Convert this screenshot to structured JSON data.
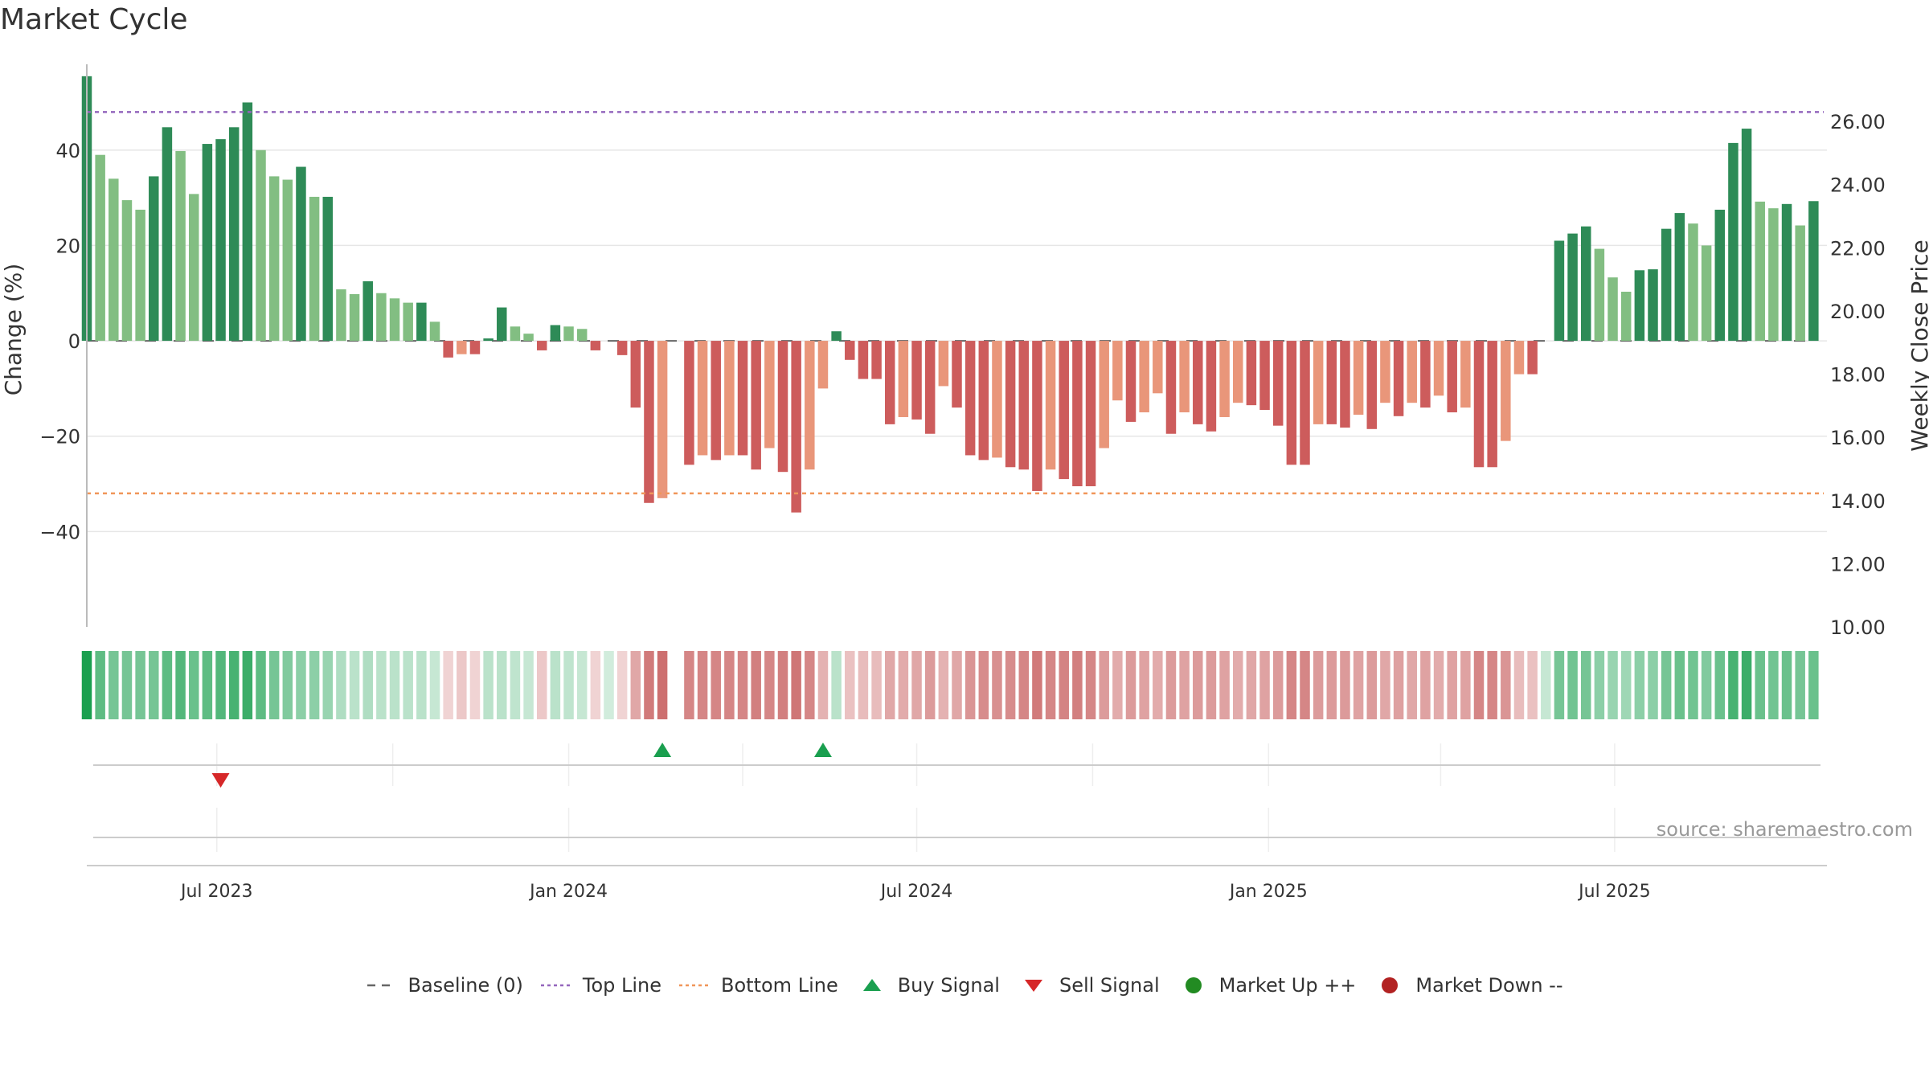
{
  "chart_data": {
    "type": "bar",
    "title": "Market Cycle",
    "ylabel": "Change (%)",
    "y2label": "Weekly Close Price",
    "ylim": [
      -60,
      58
    ],
    "y2lim": [
      10,
      27.3
    ],
    "yticks": [
      -40,
      -20,
      0,
      20,
      40
    ],
    "ytick_labels": [
      "−40",
      "−20",
      "0",
      "20",
      "40"
    ],
    "y2ticks": [
      10,
      12,
      14,
      16,
      18,
      20,
      22,
      24,
      26
    ],
    "y2tick_labels": [
      "10.00",
      "12.00",
      "14.00",
      "16.00",
      "18.00",
      "20.00",
      "22.00",
      "24.00",
      "26.00"
    ],
    "grid": true,
    "xlim": [
      "2023-04-24",
      "2025-10-20"
    ],
    "first_week": "2023-04-24",
    "week_step_days": 7,
    "xticks": [
      {
        "date": "2023-07-01",
        "label": "Jul 2023"
      },
      {
        "date": "2024-01-01",
        "label": "Jan 2024"
      },
      {
        "date": "2024-07-01",
        "label": "Jul 2024"
      },
      {
        "date": "2025-01-01",
        "label": "Jan 2025"
      },
      {
        "date": "2025-07-01",
        "label": "Jul 2025"
      }
    ],
    "top_line": 48,
    "bottom_line": -32,
    "change_values": [
      55.5,
      39,
      34,
      29.5,
      27.5,
      34.5,
      44.8,
      39.8,
      30.8,
      41.3,
      42.3,
      44.8,
      50,
      40,
      34.5,
      33.8,
      36.5,
      30.2,
      30.2,
      10.8,
      9.8,
      12.5,
      10,
      8.9,
      8,
      8,
      4,
      -3.5,
      -2.8,
      -2.8,
      0.5,
      7,
      3,
      1.5,
      -2,
      3.3,
      3,
      2.5,
      -2,
      0,
      -3,
      -14,
      -34,
      -33,
      0,
      -26,
      -24,
      -25,
      -24,
      -24,
      -27,
      -22.5,
      -27.5,
      -36,
      -27,
      -10,
      2,
      -4,
      -8,
      -8,
      -17.5,
      -16,
      -16.5,
      -19.5,
      -9.5,
      -14,
      -24,
      -25,
      -24.5,
      -26.5,
      -27,
      -31.5,
      -27,
      -29,
      -30.5,
      -30.5,
      -22.5,
      -12.5,
      -17,
      -15,
      -11,
      -19.5,
      -15,
      -17.5,
      -19,
      -16,
      -13,
      -13.5,
      -14.5,
      -17.8,
      -26,
      -26,
      -17.5,
      -17.5,
      -18.2,
      -15.5,
      -18.5,
      -13,
      -15.8,
      -13,
      -14,
      -11.5,
      -15,
      -14,
      -26.5,
      -26.5,
      -21,
      -7,
      -7,
      0,
      21,
      22.5,
      24,
      19.3,
      13.3,
      10.3,
      14.8,
      15,
      23.5,
      26.8,
      24.6,
      20,
      27.5,
      41.5,
      44.5,
      29.2,
      27.8,
      28.7,
      24.2,
      29.3
    ],
    "intensity_values": [
      1,
      0.7,
      0.6,
      0.6,
      0.6,
      0.6,
      0.7,
      0.75,
      0.65,
      0.7,
      0.75,
      0.8,
      0.85,
      0.7,
      0.6,
      0.55,
      0.5,
      0.5,
      0.45,
      0.35,
      0.3,
      0.35,
      0.3,
      0.3,
      0.3,
      0.3,
      0.25,
      0.2,
      0.25,
      0.2,
      0.3,
      0.3,
      0.28,
      0.25,
      0.25,
      0.3,
      0.28,
      0.25,
      0.2,
      0.2,
      0.2,
      0.4,
      0.6,
      0.65,
      null,
      0.55,
      0.55,
      0.55,
      0.55,
      0.55,
      0.58,
      0.55,
      0.58,
      0.62,
      0.55,
      0.35,
      0.3,
      0.28,
      0.3,
      0.3,
      0.4,
      0.38,
      0.4,
      0.45,
      0.35,
      0.4,
      0.48,
      0.52,
      0.5,
      0.52,
      0.55,
      0.6,
      0.55,
      0.56,
      0.58,
      0.55,
      0.45,
      0.38,
      0.45,
      0.42,
      0.38,
      0.45,
      0.42,
      0.45,
      0.45,
      0.42,
      0.38,
      0.4,
      0.42,
      0.45,
      0.55,
      0.55,
      0.45,
      0.45,
      0.46,
      0.42,
      0.45,
      0.4,
      0.43,
      0.4,
      0.42,
      0.38,
      0.42,
      0.42,
      0.55,
      0.55,
      0.48,
      0.3,
      0.28,
      0.25,
      0.6,
      0.62,
      0.6,
      0.5,
      0.45,
      0.42,
      0.5,
      0.5,
      0.6,
      0.65,
      0.62,
      0.55,
      0.65,
      0.8,
      0.85,
      0.65,
      0.62,
      0.65,
      0.6,
      0.65
    ],
    "buy_signals": [
      "2024-02-19",
      "2024-05-13"
    ],
    "sell_signals": [
      "2023-07-03"
    ],
    "market_up": [],
    "market_down": [],
    "legend": [
      {
        "label": "Baseline (0)",
        "symbol": "dashed-line",
        "color": "#666666"
      },
      {
        "label": "Top Line",
        "symbol": "dotted-line",
        "color": "#9467bd"
      },
      {
        "label": "Bottom Line",
        "symbol": "dotted-line",
        "color": "#f0965a"
      },
      {
        "label": "Buy Signal",
        "symbol": "triangle-up",
        "color": "#1a9f4f"
      },
      {
        "label": "Sell Signal",
        "symbol": "triangle-down",
        "color": "#d62728"
      },
      {
        "label": "Market Up ++",
        "symbol": "dot",
        "color": "#228b22"
      },
      {
        "label": "Market Down --",
        "symbol": "dot",
        "color": "#b22222"
      }
    ],
    "legend_position": "bottom",
    "annotation": "source: sharemaestro.com"
  },
  "colors": {
    "up_strong": "#2e8b57",
    "up_light": "#82be82",
    "down_strong": "#cd5c5c",
    "down_light": "#e9967a",
    "top_line": "#9467bd",
    "bottom_line": "#f0965a",
    "buy": "#1a9f4f",
    "sell": "#d62728",
    "grid": "#e6e6e6",
    "axis": "#bbbbbb"
  }
}
